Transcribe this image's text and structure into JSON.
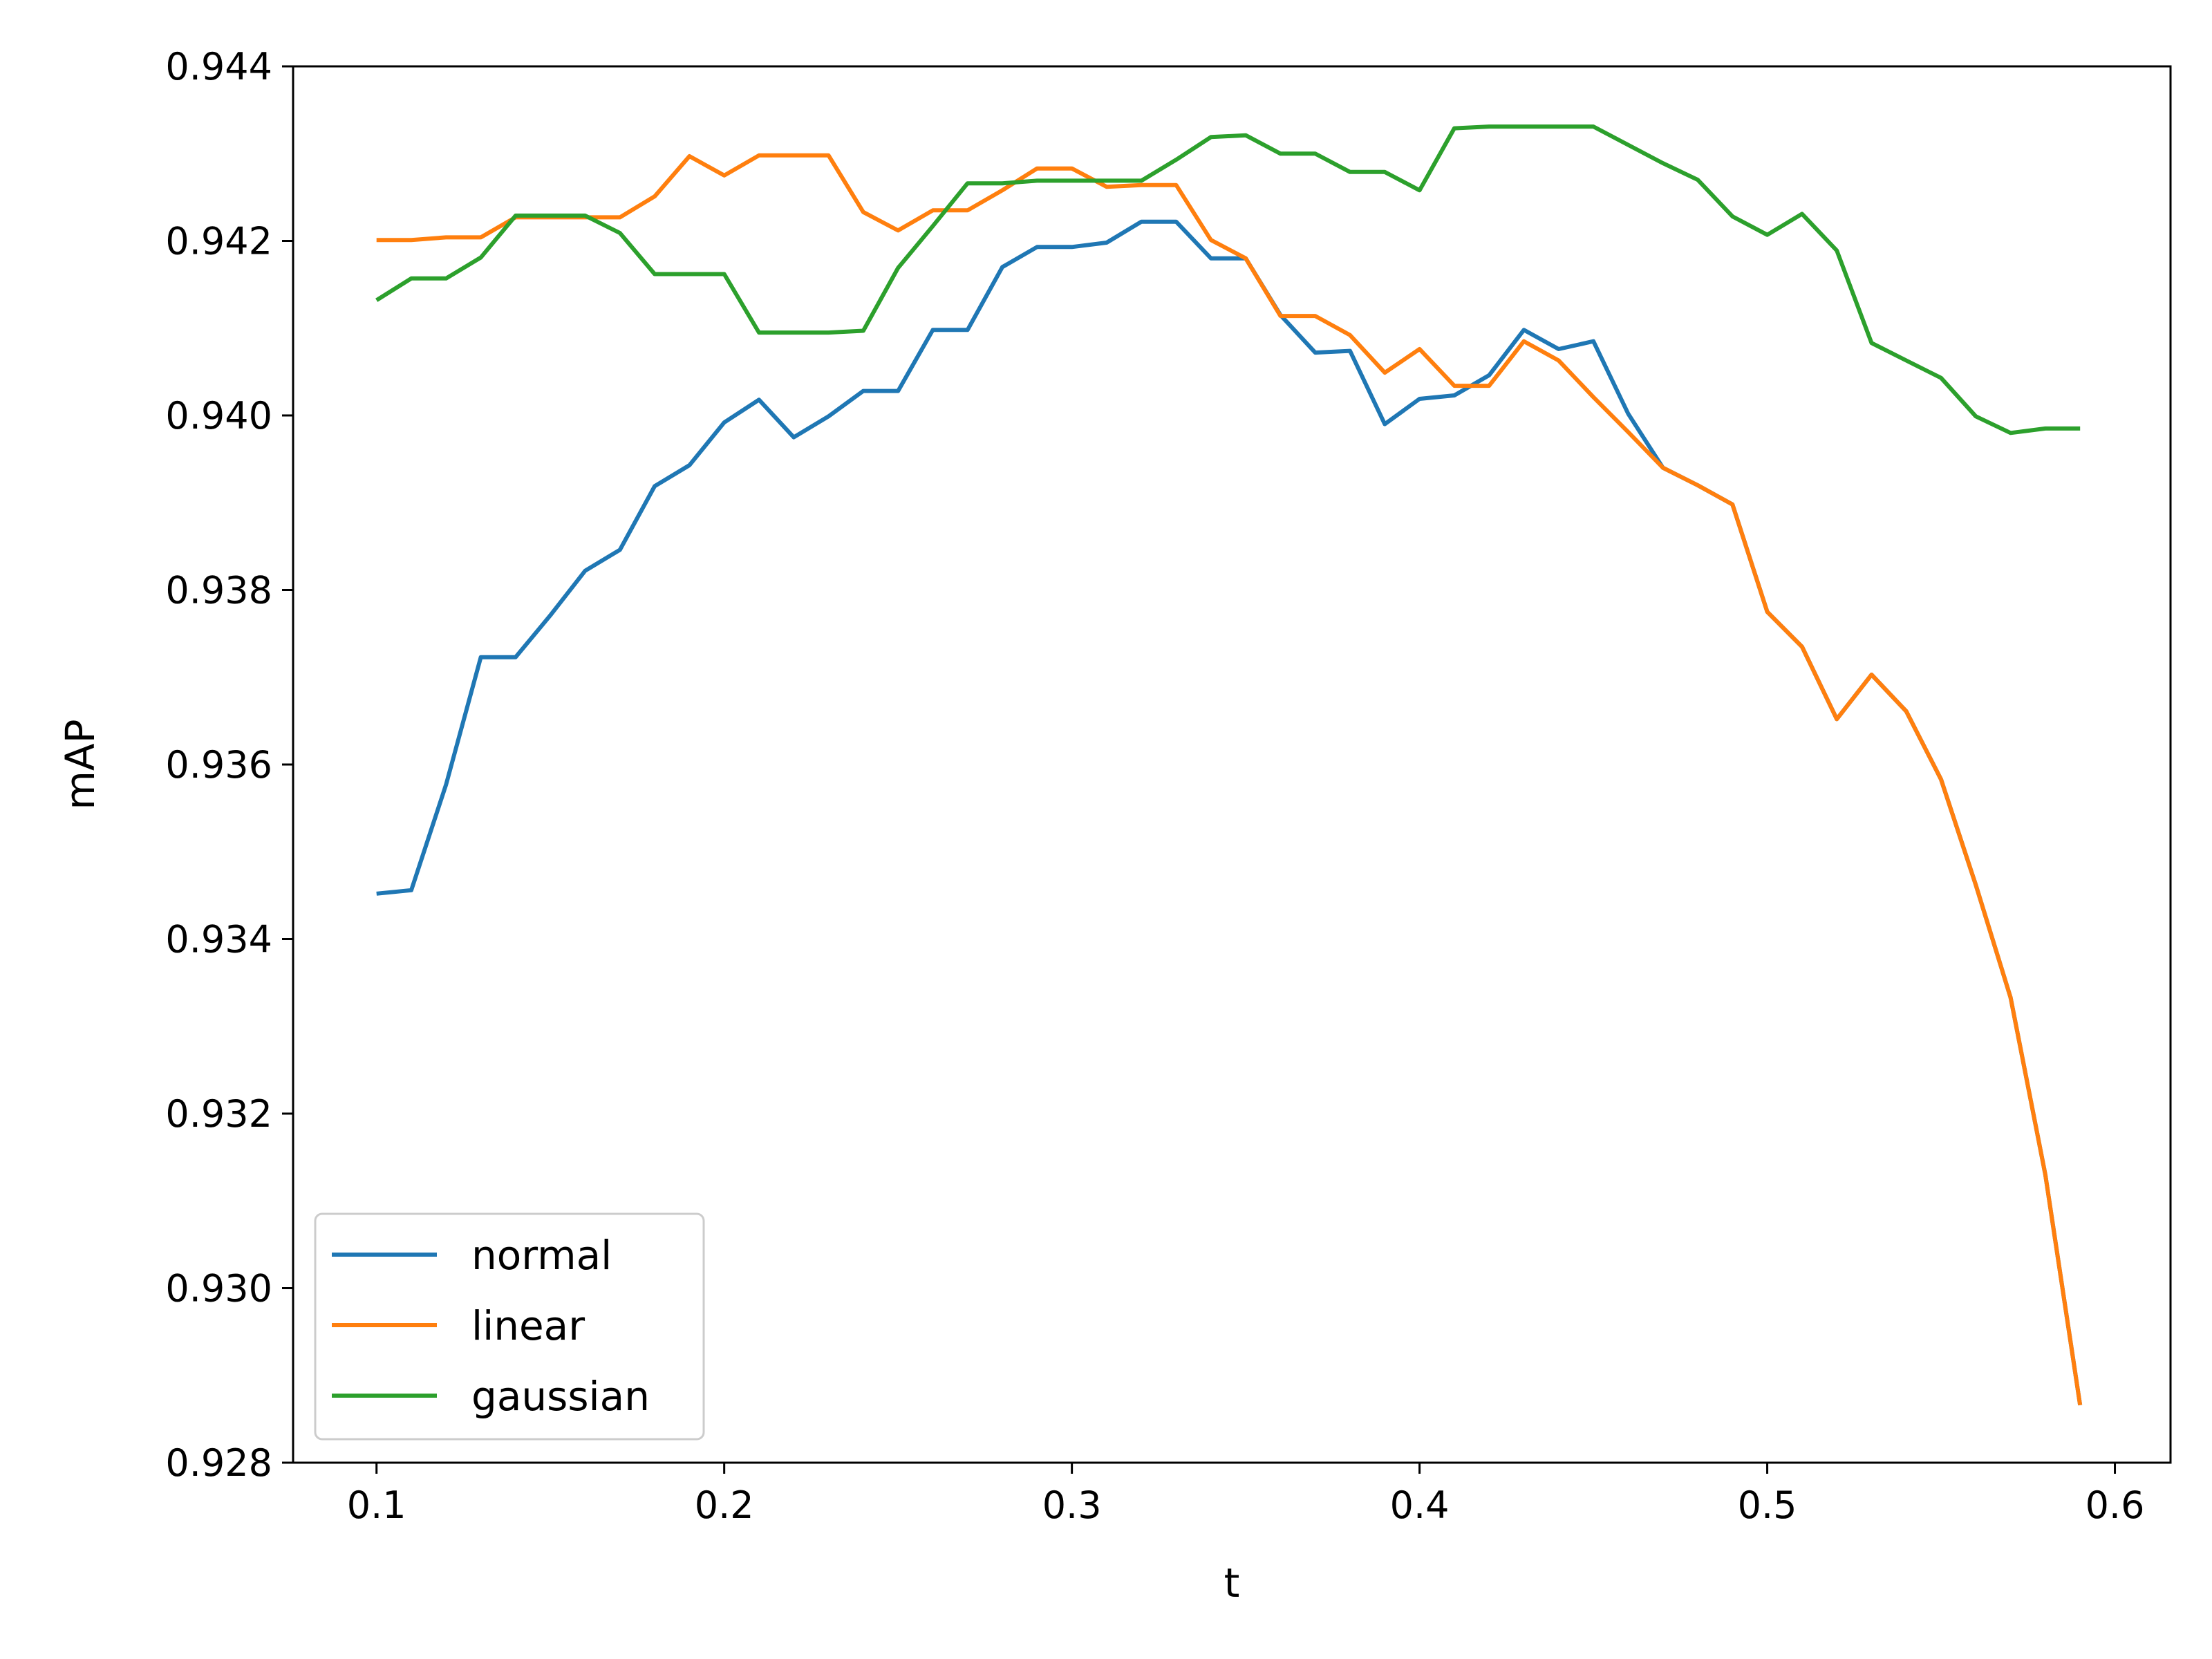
{
  "chart_data": {
    "type": "line",
    "title": "",
    "xlabel": "t",
    "ylabel": "mAP",
    "xlim": [
      0.076,
      0.616
    ],
    "ylim": [
      0.928,
      0.944
    ],
    "x_ticks": [
      0.1,
      0.2,
      0.3,
      0.4,
      0.5,
      0.6
    ],
    "x_tick_labels": [
      "0.1",
      "0.2",
      "0.3",
      "0.4",
      "0.5",
      "0.6"
    ],
    "y_ticks": [
      0.928,
      0.93,
      0.932,
      0.934,
      0.936,
      0.938,
      0.94,
      0.942,
      0.944
    ],
    "y_tick_labels": [
      "0.928",
      "0.930",
      "0.932",
      "0.934",
      "0.936",
      "0.938",
      "0.940",
      "0.942",
      "0.944"
    ],
    "grid": false,
    "legend_position": "lower-left",
    "x": [
      0.1,
      0.11,
      0.12,
      0.13,
      0.14,
      0.15,
      0.16,
      0.17,
      0.18,
      0.19,
      0.2,
      0.21,
      0.22,
      0.23,
      0.24,
      0.25,
      0.26,
      0.27,
      0.28,
      0.29,
      0.3,
      0.31,
      0.32,
      0.33,
      0.34,
      0.35,
      0.36,
      0.37,
      0.38,
      0.39,
      0.4,
      0.41,
      0.42,
      0.43,
      0.44,
      0.45,
      0.46,
      0.47,
      0.48,
      0.49,
      0.5,
      0.51,
      0.52,
      0.53,
      0.54,
      0.55,
      0.56,
      0.57,
      0.58,
      0.59
    ],
    "series": [
      {
        "name": "normal",
        "color": "#1f77b4",
        "values": [
          0.93452,
          0.93456,
          0.93577,
          0.93723,
          0.93723,
          0.93771,
          0.93822,
          0.93846,
          0.93919,
          0.93943,
          0.93992,
          0.94018,
          0.93975,
          0.93999,
          0.94028,
          0.94028,
          0.94098,
          0.94098,
          0.9417,
          0.94193,
          0.94193,
          0.94198,
          0.94222,
          0.94222,
          0.9418,
          0.9418,
          0.94115,
          0.94072,
          0.94074,
          0.9399,
          0.94019,
          0.94023,
          0.94046,
          0.94098,
          0.94076,
          0.94085,
          0.94002,
          0.9394,
          0.9392,
          0.93898,
          0.93775,
          0.93735,
          0.93652,
          0.93703,
          0.93661,
          0.93583,
          0.93462,
          0.93333,
          0.9313,
          0.92866
        ]
      },
      {
        "name": "linear",
        "color": "#ff7f0e",
        "values": [
          0.94201,
          0.94201,
          0.94204,
          0.94204,
          0.94227,
          0.94227,
          0.94227,
          0.94227,
          0.94251,
          0.94297,
          0.94275,
          0.94298,
          0.94298,
          0.94298,
          0.94233,
          0.94212,
          0.94235,
          0.94235,
          0.94258,
          0.94283,
          0.94283,
          0.94262,
          0.94264,
          0.94264,
          0.94201,
          0.9418,
          0.94114,
          0.94114,
          0.94092,
          0.94049,
          0.94076,
          0.94034,
          0.94034,
          0.94085,
          0.94063,
          0.94021,
          0.93981,
          0.9394,
          0.9392,
          0.93898,
          0.93775,
          0.93735,
          0.93652,
          0.93703,
          0.93661,
          0.93583,
          0.93462,
          0.93333,
          0.9313,
          0.92866
        ]
      },
      {
        "name": "gaussian",
        "color": "#2ca02c",
        "values": [
          0.94132,
          0.94157,
          0.94157,
          0.94181,
          0.94229,
          0.94229,
          0.94229,
          0.94209,
          0.94162,
          0.94162,
          0.94162,
          0.94095,
          0.94095,
          0.94095,
          0.94097,
          0.94169,
          0.94217,
          0.94266,
          0.94266,
          0.94269,
          0.94269,
          0.94269,
          0.94269,
          0.94293,
          0.94319,
          0.94321,
          0.943,
          0.943,
          0.94279,
          0.94279,
          0.94258,
          0.94329,
          0.94331,
          0.94331,
          0.94331,
          0.94331,
          0.9431,
          0.94289,
          0.9427,
          0.94228,
          0.94207,
          0.94231,
          0.94189,
          0.94083,
          0.94063,
          0.94043,
          0.93999,
          0.9398,
          0.93985,
          0.93985
        ]
      }
    ]
  }
}
